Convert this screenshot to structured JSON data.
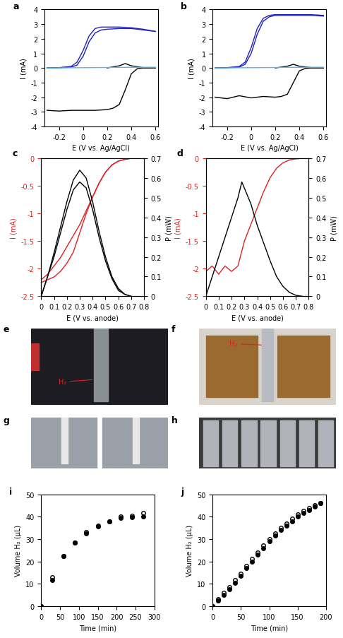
{
  "chart_data": [
    {
      "type": "line",
      "title": "a",
      "x_label": "E (V vs. Ag/AgCl)",
      "y_label": "I (mA)",
      "xlim": [
        -0.32,
        0.62
      ],
      "xticks": [
        -0.2,
        0,
        0.2,
        0.4,
        0.6
      ],
      "ylim": [
        -4,
        4
      ],
      "yticks": [
        -4,
        -3,
        -2,
        -1,
        0,
        1,
        2,
        3,
        4
      ],
      "series": [
        {
          "color": "#2020c0",
          "x": [
            -0.3,
            -0.2,
            -0.1,
            -0.05,
            0,
            0.05,
            0.1,
            0.15,
            0.2,
            0.3,
            0.4,
            0.5,
            0.6
          ],
          "values": [
            0,
            0.02,
            0.1,
            0.4,
            1.2,
            2.2,
            2.7,
            2.8,
            2.8,
            2.8,
            2.75,
            2.65,
            2.5
          ]
        },
        {
          "color": "#2020c0",
          "x": [
            -0.3,
            -0.2,
            -0.1,
            -0.05,
            0,
            0.05,
            0.1,
            0.15,
            0.2,
            0.3,
            0.4,
            0.5,
            0.6
          ],
          "values": [
            0,
            0.02,
            0.05,
            0.2,
            0.8,
            1.8,
            2.4,
            2.6,
            2.65,
            2.7,
            2.7,
            2.6,
            2.5
          ]
        },
        {
          "color": "#000000",
          "x": [
            -0.3,
            -0.2,
            -0.1,
            0,
            0.1,
            0.2,
            0.25,
            0.3,
            0.35,
            0.4,
            0.45,
            0.5,
            0.6
          ],
          "values": [
            -2.9,
            -2.95,
            -2.9,
            -2.9,
            -2.9,
            -2.85,
            -2.75,
            -2.5,
            -1.5,
            -0.4,
            -0.05,
            0,
            0
          ]
        },
        {
          "color": "#000000",
          "x": [
            0.2,
            0.3,
            0.35,
            0.4,
            0.5,
            0.6
          ],
          "values": [
            0,
            0.15,
            0.3,
            0.15,
            0.02,
            0
          ]
        },
        {
          "color": "#5ab4e6",
          "x": [
            -0.3,
            0,
            0.3,
            0.6
          ],
          "values": [
            0,
            0.02,
            0.04,
            0.05
          ]
        }
      ]
    },
    {
      "type": "line",
      "title": "b",
      "x_label": "E (V vs. Ag/AgCl)",
      "y_label": "I (mA)",
      "xlim": [
        -0.32,
        0.62
      ],
      "xticks": [
        -0.2,
        0,
        0.2,
        0.4,
        0.6
      ],
      "ylim": [
        -4,
        4
      ],
      "yticks": [
        -4,
        -3,
        -2,
        -1,
        0,
        1,
        2,
        3,
        4
      ],
      "series": [
        {
          "color": "#2020c0",
          "x": [
            -0.3,
            -0.2,
            -0.1,
            -0.05,
            0,
            0.05,
            0.1,
            0.15,
            0.2,
            0.3,
            0.4,
            0.5,
            0.6
          ],
          "values": [
            0,
            0.02,
            0.1,
            0.4,
            1.4,
            2.7,
            3.4,
            3.6,
            3.65,
            3.65,
            3.65,
            3.65,
            3.6
          ]
        },
        {
          "color": "#2020c0",
          "x": [
            -0.3,
            -0.2,
            -0.1,
            -0.05,
            0,
            0.05,
            0.1,
            0.15,
            0.2,
            0.3,
            0.4,
            0.5,
            0.6
          ],
          "values": [
            0,
            0.02,
            0.05,
            0.25,
            1.0,
            2.3,
            3.2,
            3.5,
            3.6,
            3.6,
            3.6,
            3.6,
            3.55
          ]
        },
        {
          "color": "#000000",
          "x": [
            -0.3,
            -0.2,
            -0.1,
            0,
            0.1,
            0.2,
            0.25,
            0.3,
            0.35,
            0.4,
            0.45,
            0.5,
            0.6
          ],
          "values": [
            -2.0,
            -2.1,
            -1.9,
            -2.05,
            -1.95,
            -2.0,
            -1.95,
            -1.8,
            -1.0,
            -0.2,
            -0.03,
            0,
            0
          ]
        },
        {
          "color": "#000000",
          "x": [
            0.2,
            0.3,
            0.35,
            0.4,
            0.5,
            0.6
          ],
          "values": [
            0,
            0.12,
            0.25,
            0.12,
            0.02,
            0
          ]
        },
        {
          "color": "#5ab4e6",
          "x": [
            -0.3,
            0,
            0.3,
            0.6
          ],
          "values": [
            0,
            0.02,
            0.04,
            0.05
          ]
        }
      ]
    },
    {
      "type": "line",
      "title": "c",
      "x_label": "E (V vs. anode)",
      "y_label": "I (mA)",
      "y2_label": "P (mW)",
      "xlim": [
        0,
        0.8
      ],
      "xticks": [
        0,
        0.1,
        0.2,
        0.3,
        0.4,
        0.5,
        0.6,
        0.7,
        0.8
      ],
      "ylim": [
        -2.5,
        0
      ],
      "yticks": [
        -2.5,
        -2,
        -1.5,
        -1,
        -0.5,
        0
      ],
      "y2lim": [
        0,
        0.7
      ],
      "y2ticks": [
        0,
        0.1,
        0.2,
        0.3,
        0.4,
        0.5,
        0.6,
        0.7
      ],
      "series": [
        {
          "color": "#e02020",
          "x": [
            0,
            0.05,
            0.1,
            0.15,
            0.2,
            0.25,
            0.3,
            0.35,
            0.4,
            0.45,
            0.5,
            0.55,
            0.6,
            0.65,
            0.7,
            0.75
          ],
          "values": [
            -2.25,
            -2.2,
            -2.15,
            -2.05,
            -1.9,
            -1.7,
            -1.35,
            -1.0,
            -0.7,
            -0.45,
            -0.25,
            -0.12,
            -0.05,
            -0.02,
            0,
            0
          ]
        },
        {
          "color": "#e02020",
          "x": [
            0,
            0.05,
            0.1,
            0.15,
            0.2,
            0.25,
            0.3,
            0.35,
            0.4,
            0.45,
            0.5,
            0.55,
            0.6,
            0.65,
            0.7,
            0.75
          ],
          "values": [
            -2.2,
            -2.1,
            -1.95,
            -1.8,
            -1.6,
            -1.4,
            -1.2,
            -0.95,
            -0.7,
            -0.45,
            -0.25,
            -0.12,
            -0.05,
            -0.02,
            0,
            0
          ]
        },
        {
          "color": "#000000",
          "axis": "y2",
          "x": [
            0,
            0.05,
            0.1,
            0.15,
            0.2,
            0.25,
            0.3,
            0.35,
            0.4,
            0.45,
            0.5,
            0.55,
            0.6,
            0.65,
            0.7
          ],
          "values": [
            0,
            0.1,
            0.22,
            0.35,
            0.48,
            0.59,
            0.64,
            0.6,
            0.48,
            0.33,
            0.2,
            0.1,
            0.04,
            0.01,
            0
          ]
        },
        {
          "color": "#000000",
          "axis": "y2",
          "x": [
            0,
            0.05,
            0.1,
            0.15,
            0.2,
            0.25,
            0.3,
            0.35,
            0.4,
            0.45,
            0.5,
            0.55,
            0.6,
            0.65,
            0.7
          ],
          "values": [
            0,
            0.1,
            0.2,
            0.32,
            0.44,
            0.54,
            0.58,
            0.55,
            0.44,
            0.3,
            0.18,
            0.09,
            0.03,
            0.01,
            0
          ]
        }
      ]
    },
    {
      "type": "line",
      "title": "d",
      "x_label": "E (V vs. anode)",
      "y_label": "I (mA)",
      "y2_label": "P (mW)",
      "xlim": [
        0,
        0.8
      ],
      "xticks": [
        0,
        0.1,
        0.2,
        0.3,
        0.4,
        0.5,
        0.6,
        0.7,
        0.8
      ],
      "ylim": [
        -2.5,
        0
      ],
      "yticks": [
        -2.5,
        -2,
        -1.5,
        -1,
        -0.5,
        0
      ],
      "y2lim": [
        0,
        0.7
      ],
      "y2ticks": [
        0,
        0.1,
        0.2,
        0.3,
        0.4,
        0.5,
        0.6,
        0.7
      ],
      "series": [
        {
          "color": "#e02020",
          "x": [
            0,
            0.05,
            0.1,
            0.15,
            0.2,
            0.25,
            0.3,
            0.35,
            0.4,
            0.45,
            0.5,
            0.55,
            0.6,
            0.65,
            0.7,
            0.75
          ],
          "values": [
            -2.05,
            -1.95,
            -2.1,
            -1.95,
            -2.05,
            -1.95,
            -1.5,
            -1.2,
            -0.9,
            -0.6,
            -0.35,
            -0.18,
            -0.08,
            -0.03,
            -0.01,
            0
          ]
        },
        {
          "color": "#000000",
          "axis": "y2",
          "x": [
            0,
            0.05,
            0.1,
            0.15,
            0.2,
            0.25,
            0.28,
            0.35,
            0.4,
            0.45,
            0.5,
            0.55,
            0.6,
            0.65,
            0.7,
            0.75
          ],
          "values": [
            0,
            0.1,
            0.2,
            0.3,
            0.4,
            0.5,
            0.58,
            0.47,
            0.36,
            0.27,
            0.18,
            0.1,
            0.05,
            0.02,
            0.005,
            0
          ]
        }
      ]
    },
    {
      "type": "scatter",
      "title": "i",
      "x_label": "Time (min)",
      "y_label": "Volume H₂ (µL)",
      "xlim": [
        0,
        300
      ],
      "xticks": [
        0,
        50,
        100,
        150,
        200,
        250,
        300
      ],
      "ylim": [
        0,
        50
      ],
      "yticks": [
        0,
        10,
        20,
        30,
        40,
        50
      ],
      "series": [
        {
          "color": "#000000",
          "marker": "circle",
          "x": [
            0,
            30,
            60,
            90,
            120,
            150,
            180,
            210,
            240,
            270
          ],
          "values": [
            0,
            11.5,
            22.5,
            28.5,
            32.5,
            35.5,
            38,
            39.5,
            39.8,
            40
          ]
        },
        {
          "color": "#000000",
          "marker": "open_circle",
          "x": [
            0,
            30,
            60,
            90,
            120,
            150,
            180,
            210,
            240,
            270
          ],
          "values": [
            0,
            13,
            22.5,
            28.5,
            33,
            36,
            38,
            40,
            40.5,
            41.5
          ]
        }
      ]
    },
    {
      "type": "scatter",
      "title": "j",
      "x_label": "Time (min)",
      "y_label": "Volume H₂ (µL)",
      "xlim": [
        0,
        200
      ],
      "xticks": [
        0,
        50,
        100,
        150,
        200
      ],
      "ylim": [
        0,
        50
      ],
      "yticks": [
        0,
        10,
        20,
        30,
        40,
        50
      ],
      "series": [
        {
          "color": "#000000",
          "marker": "circle",
          "x": [
            0,
            10,
            20,
            30,
            40,
            50,
            60,
            70,
            80,
            90,
            100,
            110,
            120,
            130,
            140,
            150,
            160,
            170,
            180,
            190
          ],
          "values": [
            0,
            2.5,
            5,
            7.5,
            10.5,
            13.5,
            17,
            20,
            23,
            26,
            29,
            31.5,
            34,
            36,
            38,
            40,
            41.5,
            43,
            44.5,
            46
          ]
        },
        {
          "color": "#000000",
          "marker": "open_circle",
          "x": [
            0,
            10,
            20,
            30,
            40,
            50,
            60,
            70,
            80,
            90,
            100,
            110,
            120,
            130,
            140,
            150,
            160,
            170,
            180,
            190
          ],
          "values": [
            0,
            3,
            6,
            8.5,
            11.5,
            14.5,
            18,
            21,
            24,
            27,
            30,
            32.5,
            35,
            37,
            39,
            41,
            42.5,
            44,
            45,
            46
          ]
        }
      ]
    }
  ],
  "photos": [
    {
      "title": "e",
      "annotations": [
        "H₂"
      ]
    },
    {
      "title": "f",
      "annotations": [
        "H₂"
      ]
    },
    {
      "title": "g",
      "annotations": []
    },
    {
      "title": "h",
      "annotations": []
    }
  ]
}
